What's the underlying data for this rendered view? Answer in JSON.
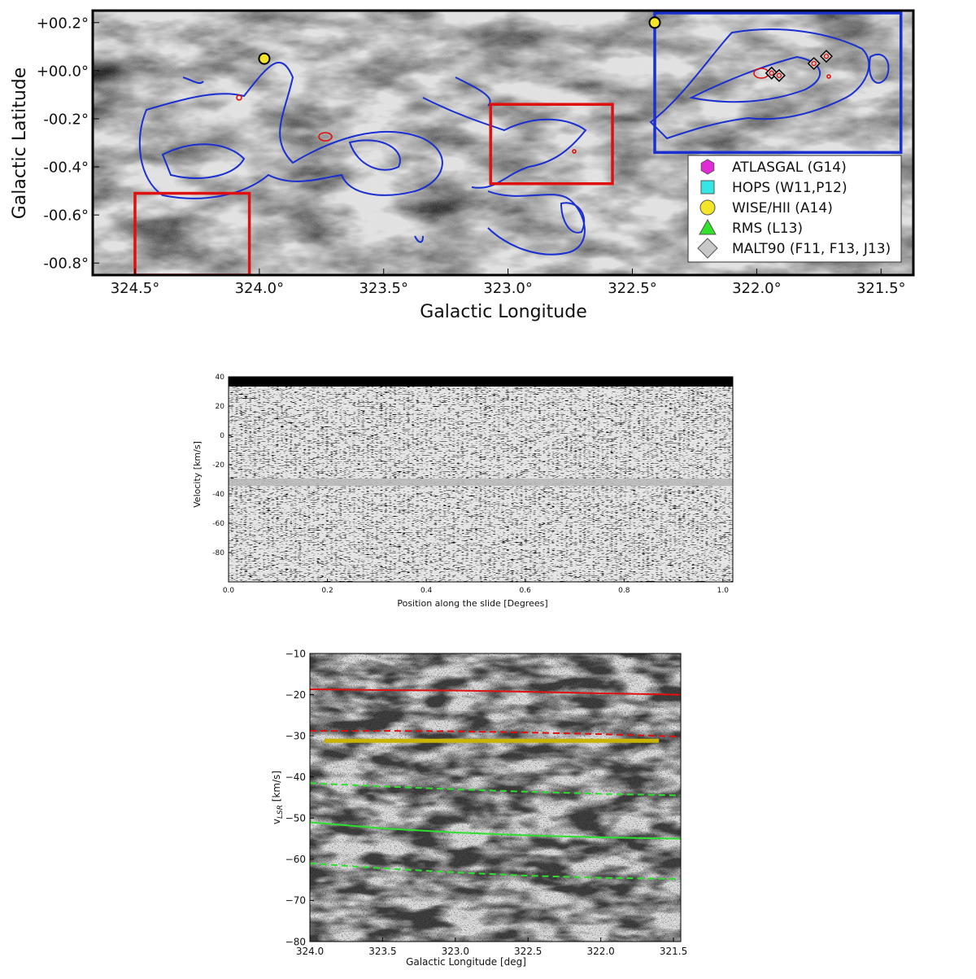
{
  "chart_data": [
    {
      "type": "heatmap",
      "id": "map",
      "xlabel": "Galactic Longitude",
      "ylabel": "Galactic Latitude",
      "xlim": [
        324.67,
        321.37
      ],
      "ylim": [
        -0.85,
        0.25
      ],
      "xticks": [
        324.5,
        324.0,
        323.5,
        323.0,
        322.5,
        322.0,
        321.5
      ],
      "xtick_labels": [
        "324.5°",
        "324.0°",
        "323.5°",
        "323.0°",
        "322.5°",
        "322.0°",
        "321.5°"
      ],
      "yticks": [
        0.2,
        0.0,
        -0.2,
        -0.4,
        -0.6,
        -0.8
      ],
      "ytick_labels": [
        "+00.2°",
        "+00.0°",
        "-00.2°",
        "-00.4°",
        "-00.6°",
        "-00.8°"
      ],
      "regions": [
        {
          "color": "#e01010",
          "l": [
            324.5,
            324.04
          ],
          "b": [
            -0.85,
            -0.51
          ]
        },
        {
          "color": "#e01010",
          "l": [
            323.07,
            322.58
          ],
          "b": [
            -0.47,
            -0.14
          ]
        },
        {
          "color": "#1a2fd0",
          "l": [
            322.41,
            321.42
          ],
          "b": [
            -0.34,
            0.24
          ]
        }
      ],
      "wise_hii": [
        [
          323.98,
          0.05
        ],
        [
          322.41,
          0.2
        ]
      ],
      "malt90": [
        [
          321.94,
          -0.01
        ],
        [
          321.91,
          -0.02
        ],
        [
          321.77,
          0.03
        ],
        [
          321.72,
          0.06
        ]
      ],
      "legend_position": "bottom-right",
      "legend": [
        {
          "label": "ATLASGAL (G14)",
          "marker": "hexagon",
          "color": "#e22bd6"
        },
        {
          "label": "HOPS (W11,P12)",
          "marker": "square",
          "color": "#35e6e6"
        },
        {
          "label": "WISE/HII (A14)",
          "marker": "circle",
          "color": "#f5e52a"
        },
        {
          "label": "RMS (L13)",
          "marker": "triangle",
          "color": "#33e02a"
        },
        {
          "label": "MALT90 (F11, F13, J13)",
          "marker": "diamond",
          "color": "#c8c8c8"
        }
      ]
    },
    {
      "type": "heatmap",
      "id": "pv",
      "xlabel": "Position along the slide [Degrees]",
      "ylabel": "Velocity [km/s]",
      "xlim": [
        0.0,
        1.02
      ],
      "ylim": [
        -100,
        40
      ],
      "xticks": [
        0.0,
        0.2,
        0.4,
        0.6,
        0.8,
        1.0
      ],
      "xtick_labels": [
        "0.0",
        "0.2",
        "0.4",
        "0.6",
        "0.8",
        "1.0"
      ],
      "yticks": [
        40,
        20,
        0,
        -20,
        -40,
        -60,
        -80
      ],
      "ytick_labels": [
        "40",
        "20",
        "0",
        "-20",
        "-40",
        "-60",
        "-80"
      ],
      "emission_band": {
        "velocity": -32,
        "width": 5
      }
    },
    {
      "type": "heatmap",
      "id": "lv",
      "xlabel": "Galactic Longitude [deg]",
      "ylabel": "v",
      "ylabel_sub": "LSR",
      "ylabel_unit": " [km/s]",
      "xlim": [
        324.0,
        321.45
      ],
      "ylim": [
        -80,
        -10
      ],
      "xticks": [
        324.0,
        323.5,
        323.0,
        322.5,
        322.0,
        321.5
      ],
      "xtick_labels": [
        "324.0",
        "323.5",
        "323.0",
        "322.5",
        "322.0",
        "321.5"
      ],
      "yticks": [
        -10,
        -20,
        -30,
        -40,
        -50,
        -60,
        -70,
        -80
      ],
      "ytick_labels": [
        "−10",
        "−20",
        "−30",
        "−40",
        "−50",
        "−60",
        "−70",
        "−80"
      ],
      "curves": [
        {
          "color": "#e01010",
          "dash": false,
          "x": [
            324.0,
            323.5,
            323.0,
            322.5,
            322.0,
            321.45
          ],
          "y": [
            -18.7,
            -18.9,
            -19.0,
            -19.3,
            -19.7,
            -20.0
          ]
        },
        {
          "color": "#e01010",
          "dash": true,
          "x": [
            324.0,
            323.5,
            323.0,
            322.5,
            322.0,
            321.45
          ],
          "y": [
            -28.8,
            -28.8,
            -28.9,
            -29.2,
            -29.6,
            -30.2
          ]
        },
        {
          "color": "#2ee02e",
          "dash": true,
          "x": [
            324.0,
            323.5,
            323.0,
            322.5,
            322.0,
            321.45
          ],
          "y": [
            -41.5,
            -42.3,
            -43.0,
            -43.6,
            -44.1,
            -44.5
          ]
        },
        {
          "color": "#2ee02e",
          "dash": false,
          "x": [
            324.0,
            323.5,
            323.0,
            322.5,
            322.0,
            321.45
          ],
          "y": [
            -51.0,
            -52.5,
            -53.5,
            -54.2,
            -54.7,
            -55.0
          ]
        },
        {
          "color": "#2ee02e",
          "dash": true,
          "x": [
            324.0,
            323.5,
            323.0,
            322.5,
            322.0,
            321.45
          ],
          "y": [
            -61.0,
            -62.2,
            -63.2,
            -64.0,
            -64.5,
            -64.8
          ]
        }
      ],
      "yellow_bar": {
        "color": "#c8b400",
        "x": [
          323.9,
          321.6
        ],
        "y": -31.2
      }
    }
  ]
}
